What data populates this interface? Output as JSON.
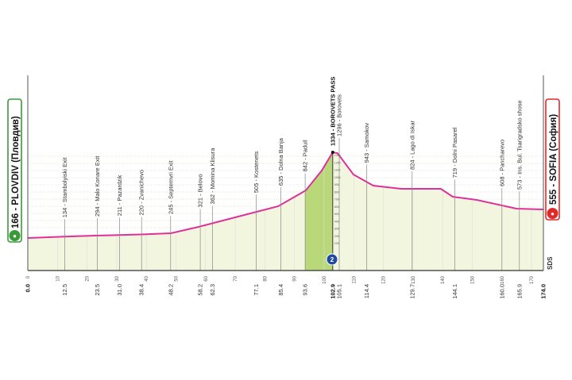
{
  "chart_data": {
    "type": "area",
    "title": "",
    "xlabel": "",
    "ylabel": "",
    "xlim": [
      0,
      174
    ],
    "x_ticks": [
      0,
      10,
      20,
      30,
      40,
      50,
      60,
      70,
      80,
      90,
      100,
      110,
      120,
      130,
      140,
      150,
      160,
      170
    ],
    "grid": true,
    "profile": [
      {
        "km": 0,
        "elev": 166
      },
      {
        "km": 12.5,
        "elev": 185
      },
      {
        "km": 22.8,
        "elev": 198
      },
      {
        "km": 38.4,
        "elev": 215
      },
      {
        "km": 48.3,
        "elev": 231
      },
      {
        "km": 57.6,
        "elev": 317
      },
      {
        "km": 71.0,
        "elev": 458
      },
      {
        "km": 84.5,
        "elev": 598
      },
      {
        "km": 93.8,
        "elev": 815
      },
      {
        "km": 99.2,
        "elev": 1085
      },
      {
        "km": 102.9,
        "elev": 1334
      },
      {
        "km": 104.5,
        "elev": 1323
      },
      {
        "km": 109.9,
        "elev": 1031
      },
      {
        "km": 116.6,
        "elev": 880
      },
      {
        "km": 126.0,
        "elev": 836
      },
      {
        "km": 139.4,
        "elev": 836
      },
      {
        "km": 143.4,
        "elev": 728
      },
      {
        "km": 151.5,
        "elev": 685
      },
      {
        "km": 164.9,
        "elev": 566
      },
      {
        "km": 174.0,
        "elev": 555
      }
    ],
    "climb": {
      "from_km": 93.6,
      "to_km": 102.9,
      "category": "2"
    },
    "climb_scale": [
      "1300",
      "1200",
      "1100",
      "1000",
      "900",
      "800",
      "700",
      "600",
      "500",
      "400",
      "300",
      "200",
      "100"
    ],
    "km_labels": [
      "0.0",
      "12.5",
      "23.5",
      "31.0",
      "38.4",
      "48.2",
      "58.2",
      "62.3",
      "77.1",
      "85.4",
      "93.6",
      "102.9",
      "105.1",
      "114.4",
      "129.7",
      "144.1",
      "160.0",
      "165.9",
      "174.0"
    ],
    "waypoints": [
      {
        "km": 12.5,
        "text": "134 - Stambolyiski Exit"
      },
      {
        "km": 23.5,
        "text": "294 - Malo Konare Exit"
      },
      {
        "km": 31.0,
        "text": "211 - Pazardzik"
      },
      {
        "km": 38.4,
        "text": "220 - Zvanichevo"
      },
      {
        "km": 48.2,
        "text": "245 - Septemvri Exit"
      },
      {
        "km": 58.2,
        "text": "321 - Belovo"
      },
      {
        "km": 62.3,
        "text": "362 - Momina Klisura"
      },
      {
        "km": 77.1,
        "text": "505 - Kostenets"
      },
      {
        "km": 85.4,
        "text": "635 - Dolna Banja"
      },
      {
        "km": 93.6,
        "text": "842 - Paduil"
      },
      {
        "km": 102.9,
        "text": "1334 - BOROVETS PASS",
        "summit": true
      },
      {
        "km": 105.1,
        "text": "1296 - Borovets"
      },
      {
        "km": 114.4,
        "text": "943 - Samokov"
      },
      {
        "km": 129.7,
        "text": "824 - Lago di Iskar"
      },
      {
        "km": 144.1,
        "text": "719 - Dolni Pasarel"
      },
      {
        "km": 160.0,
        "text": "608 - Pancharevo"
      },
      {
        "km": 165.9,
        "text": "573 - Ins. Bul. Tsarigradsko shose"
      }
    ],
    "start": {
      "text": "166 - PLOVDIV (Пловдив)",
      "color": "#3a9a3a"
    },
    "finish": {
      "text": "555 - SOFIA (София)",
      "color": "#e02a2a"
    },
    "colors": {
      "line": "#e0309a",
      "fill": "#f3f6df",
      "climb_fill": "#b9d87a",
      "axis": "#333333"
    }
  },
  "logo": "SDS"
}
